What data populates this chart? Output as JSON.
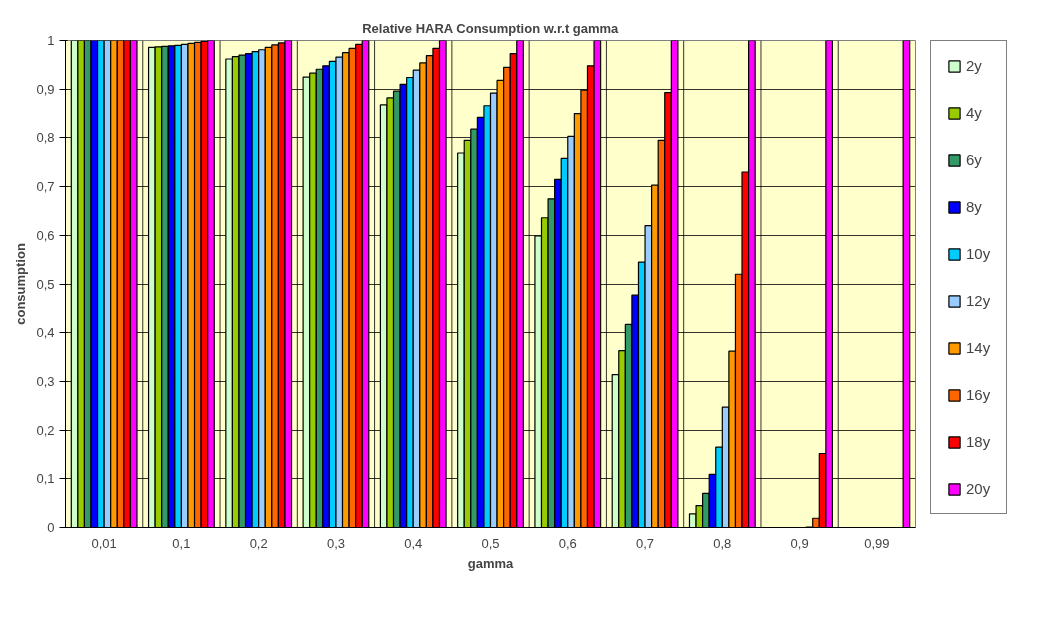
{
  "chart_data": {
    "type": "bar",
    "title": "Relative HARA Consumption w.r.t gamma",
    "xlabel": "gamma",
    "ylabel": "consumption",
    "categories": [
      "0,01",
      "0,1",
      "0,2",
      "0,3",
      "0,4",
      "0,5",
      "0,6",
      "0,7",
      "0,8",
      "0,9",
      "0,99"
    ],
    "series": [
      {
        "name": "2y",
        "color": "#ccffcc",
        "values": [
          1,
          0.986,
          0.962,
          0.925,
          0.868,
          0.769,
          0.599,
          0.314,
          0.028,
          0,
          0
        ]
      },
      {
        "name": "4y",
        "color": "#99cc00",
        "values": [
          1,
          0.987,
          0.967,
          0.933,
          0.882,
          0.795,
          0.636,
          0.363,
          0.045,
          0,
          0
        ]
      },
      {
        "name": "6y",
        "color": "#339966",
        "values": [
          1,
          0.988,
          0.97,
          0.941,
          0.896,
          0.818,
          0.675,
          0.417,
          0.07,
          0,
          0
        ]
      },
      {
        "name": "8y",
        "color": "#0000ff",
        "values": [
          1,
          0.989,
          0.973,
          0.948,
          0.91,
          0.842,
          0.715,
          0.477,
          0.109,
          0,
          0
        ]
      },
      {
        "name": "10y",
        "color": "#00ccff",
        "values": [
          1,
          0.99,
          0.977,
          0.957,
          0.924,
          0.866,
          0.758,
          0.545,
          0.165,
          0,
          0
        ]
      },
      {
        "name": "12y",
        "color": "#99ccff",
        "values": [
          1,
          0.992,
          0.981,
          0.966,
          0.939,
          0.892,
          0.803,
          0.62,
          0.247,
          0,
          0
        ]
      },
      {
        "name": "14y",
        "color": "#ff9900",
        "values": [
          1,
          0.994,
          0.986,
          0.975,
          0.954,
          0.918,
          0.85,
          0.703,
          0.362,
          0.001,
          0
        ]
      },
      {
        "name": "16y",
        "color": "#ff6600",
        "values": [
          1,
          0.996,
          0.991,
          0.984,
          0.969,
          0.945,
          0.898,
          0.795,
          0.52,
          0.019,
          0
        ]
      },
      {
        "name": "18y",
        "color": "#ff0000",
        "values": [
          1,
          0.998,
          0.995,
          0.992,
          0.984,
          0.973,
          0.948,
          0.893,
          0.73,
          0.152,
          0
        ]
      },
      {
        "name": "20y",
        "color": "#ff00ff",
        "values": [
          1,
          1,
          1,
          1,
          1,
          1,
          1,
          1,
          1,
          1,
          1
        ]
      }
    ],
    "ylim": [
      0,
      1
    ],
    "yticks": [
      0,
      {
        "value": 0.1,
        "label": "0,1"
      },
      {
        "value": 0.2,
        "label": "0,2"
      },
      {
        "value": 0.3,
        "label": "0,3"
      },
      {
        "value": 0.4,
        "label": "0,4"
      },
      {
        "value": 0.5,
        "label": "0,5"
      },
      {
        "value": 0.6,
        "label": "0,6"
      },
      {
        "value": 0.7,
        "label": "0,7"
      },
      {
        "value": 0.8,
        "label": "0,8"
      },
      {
        "value": 0.9,
        "label": "0,9"
      },
      1
    ],
    "grid": true,
    "legend": "right"
  }
}
